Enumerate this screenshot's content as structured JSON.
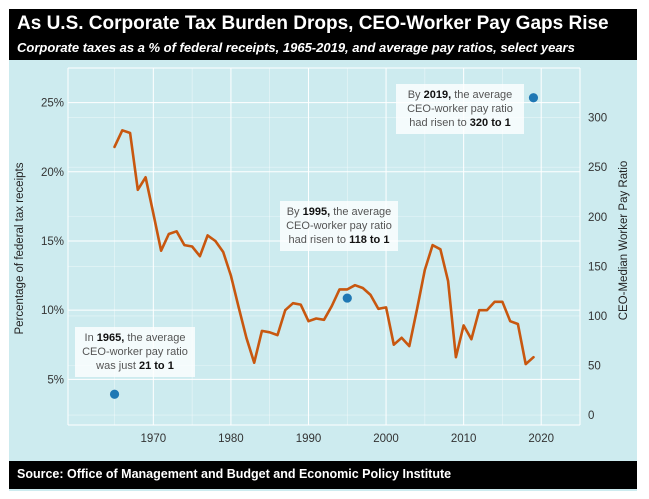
{
  "header": {
    "title": "As U.S. Corporate Tax Burden Drops, CEO-Worker Pay Gaps Rise",
    "subtitle": "Corporate taxes as a % of federal receipts, 1965-2019, and average pay ratios, select years"
  },
  "footer": {
    "source": "Source: Office of Management and Budget and Economic Policy Institute"
  },
  "colors": {
    "background": "#cdebef",
    "grid": "#ffffff",
    "line": "#c8570f",
    "point": "#1f78b4",
    "banner": "#000000"
  },
  "chart_data": {
    "type": "line",
    "xlim": [
      1959,
      2025
    ],
    "x_ticks": [
      "1970",
      "1980",
      "1990",
      "2000",
      "2010",
      "2020"
    ],
    "ylabel": "Percentage of federal tax receipts",
    "ylim": [
      1.7,
      27.5
    ],
    "y_ticks": [
      "5%",
      "10%",
      "15%",
      "20%",
      "25%"
    ],
    "y2label": "CEO-Median Worker Pay Ratio",
    "y2lim": [
      -10,
      350
    ],
    "y2_ticks": [
      "0",
      "50",
      "100",
      "150",
      "200",
      "250",
      "300"
    ],
    "grid": true,
    "series": [
      {
        "axis": "left",
        "x": [
          1965,
          1966,
          1967,
          1968,
          1969,
          1970,
          1971,
          1972,
          1973,
          1974,
          1975,
          1976,
          1977,
          1978,
          1979,
          1980,
          1981,
          1982,
          1983,
          1984,
          1985,
          1986,
          1987,
          1988,
          1989,
          1990,
          1991,
          1992,
          1993,
          1994,
          1995,
          1996,
          1997,
          1998,
          1999,
          2000,
          2001,
          2002,
          2003,
          2004,
          2005,
          2006,
          2007,
          2008,
          2009,
          2010,
          2011,
          2012,
          2013,
          2014,
          2015,
          2016,
          2017,
          2018,
          2019
        ],
        "values": [
          21.8,
          23.0,
          22.8,
          18.7,
          19.6,
          17.0,
          14.3,
          15.5,
          15.7,
          14.7,
          14.6,
          13.9,
          15.4,
          15.0,
          14.2,
          12.5,
          10.2,
          8.0,
          6.2,
          8.5,
          8.4,
          8.2,
          10.0,
          10.5,
          10.4,
          9.2,
          9.4,
          9.3,
          10.3,
          11.5,
          11.5,
          11.8,
          11.6,
          11.1,
          10.1,
          10.2,
          7.5,
          8.0,
          7.4,
          10.1,
          12.9,
          14.7,
          14.4,
          12.1,
          6.6,
          8.9,
          7.9,
          10.0,
          10.0,
          10.6,
          10.6,
          9.2,
          9.0,
          6.1,
          6.6
        ]
      },
      {
        "axis": "right",
        "type": "scatter",
        "x": [
          1965,
          1995,
          2019
        ],
        "values": [
          21,
          118,
          320
        ]
      }
    ],
    "annotations": [
      {
        "parts": [
          [
            "In ",
            false
          ],
          [
            "1965,",
            true
          ],
          [
            " the average",
            false
          ]
        ],
        "line2": "CEO-worker pay ratio",
        "line3": [
          [
            "was just ",
            false
          ],
          [
            "21 to 1",
            true
          ]
        ]
      },
      {
        "parts": [
          [
            "By ",
            false
          ],
          [
            "1995,",
            true
          ],
          [
            " the average",
            false
          ]
        ],
        "line2": "CEO-worker pay ratio",
        "line3": [
          [
            "had risen to ",
            false
          ],
          [
            "118 to 1",
            true
          ]
        ]
      },
      {
        "parts": [
          [
            "By ",
            false
          ],
          [
            "2019,",
            true
          ],
          [
            " the average",
            false
          ]
        ],
        "line2": "CEO-worker pay ratio",
        "line3": [
          [
            "had risen to ",
            false
          ],
          [
            "320 to 1",
            true
          ]
        ]
      }
    ]
  }
}
